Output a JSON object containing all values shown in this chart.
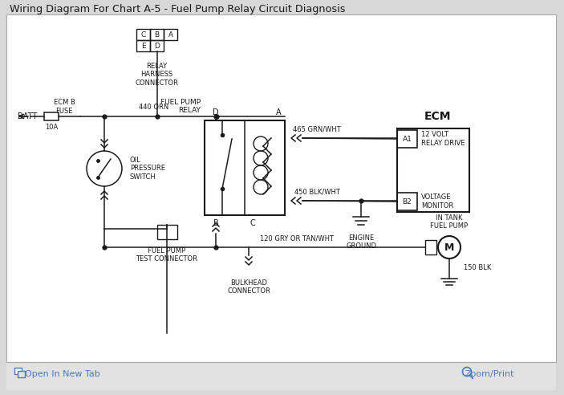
{
  "title": "Wiring Diagram For Chart A-5 - Fuel Pump Relay Circuit Diagnosis",
  "footer_text_left": "Open In New Tab",
  "footer_text_right": "Zoom/Print",
  "footer_color": "#4a7abf",
  "line_color": "#1a1a1a",
  "text_color": "#1a1a1a",
  "bg_outer": "#d8d8d8",
  "bg_diagram": "#ffffff",
  "bg_footer": "#e2e2e2",
  "border_color": "#aaaaaa",
  "wire_440": "440 ORN",
  "wire_465": "465 GRN/WHT",
  "wire_450": "450 BLK/WHT",
  "wire_120": "120 GRY OR TAN/WHT",
  "wire_150": "150 BLK",
  "ecm_label": "ECM",
  "batt_label": "BATT",
  "fuse_label": "ECM B\nFUSE",
  "fuse_val": "10A",
  "oil_label": "OIL\nPRESSURE\nSWITCH",
  "connector_label": "RELAY\nHARNESS\nCONNECTOR",
  "relay_label": "FUEL PUMP\nRELAY",
  "fuel_pump_test": "FUEL PUMP\nTEST CONNECTOR",
  "bulkhead_label": "BULKHEAD\nCONNECTOR",
  "engine_ground_label": "ENGINE\nGROUND",
  "in_tank_label": "IN TANK\nFUEL PUMP",
  "a1_label": "12 VOLT\nRELAY DRIVE",
  "b2_label": "VOLTAGE\nMONITOR"
}
